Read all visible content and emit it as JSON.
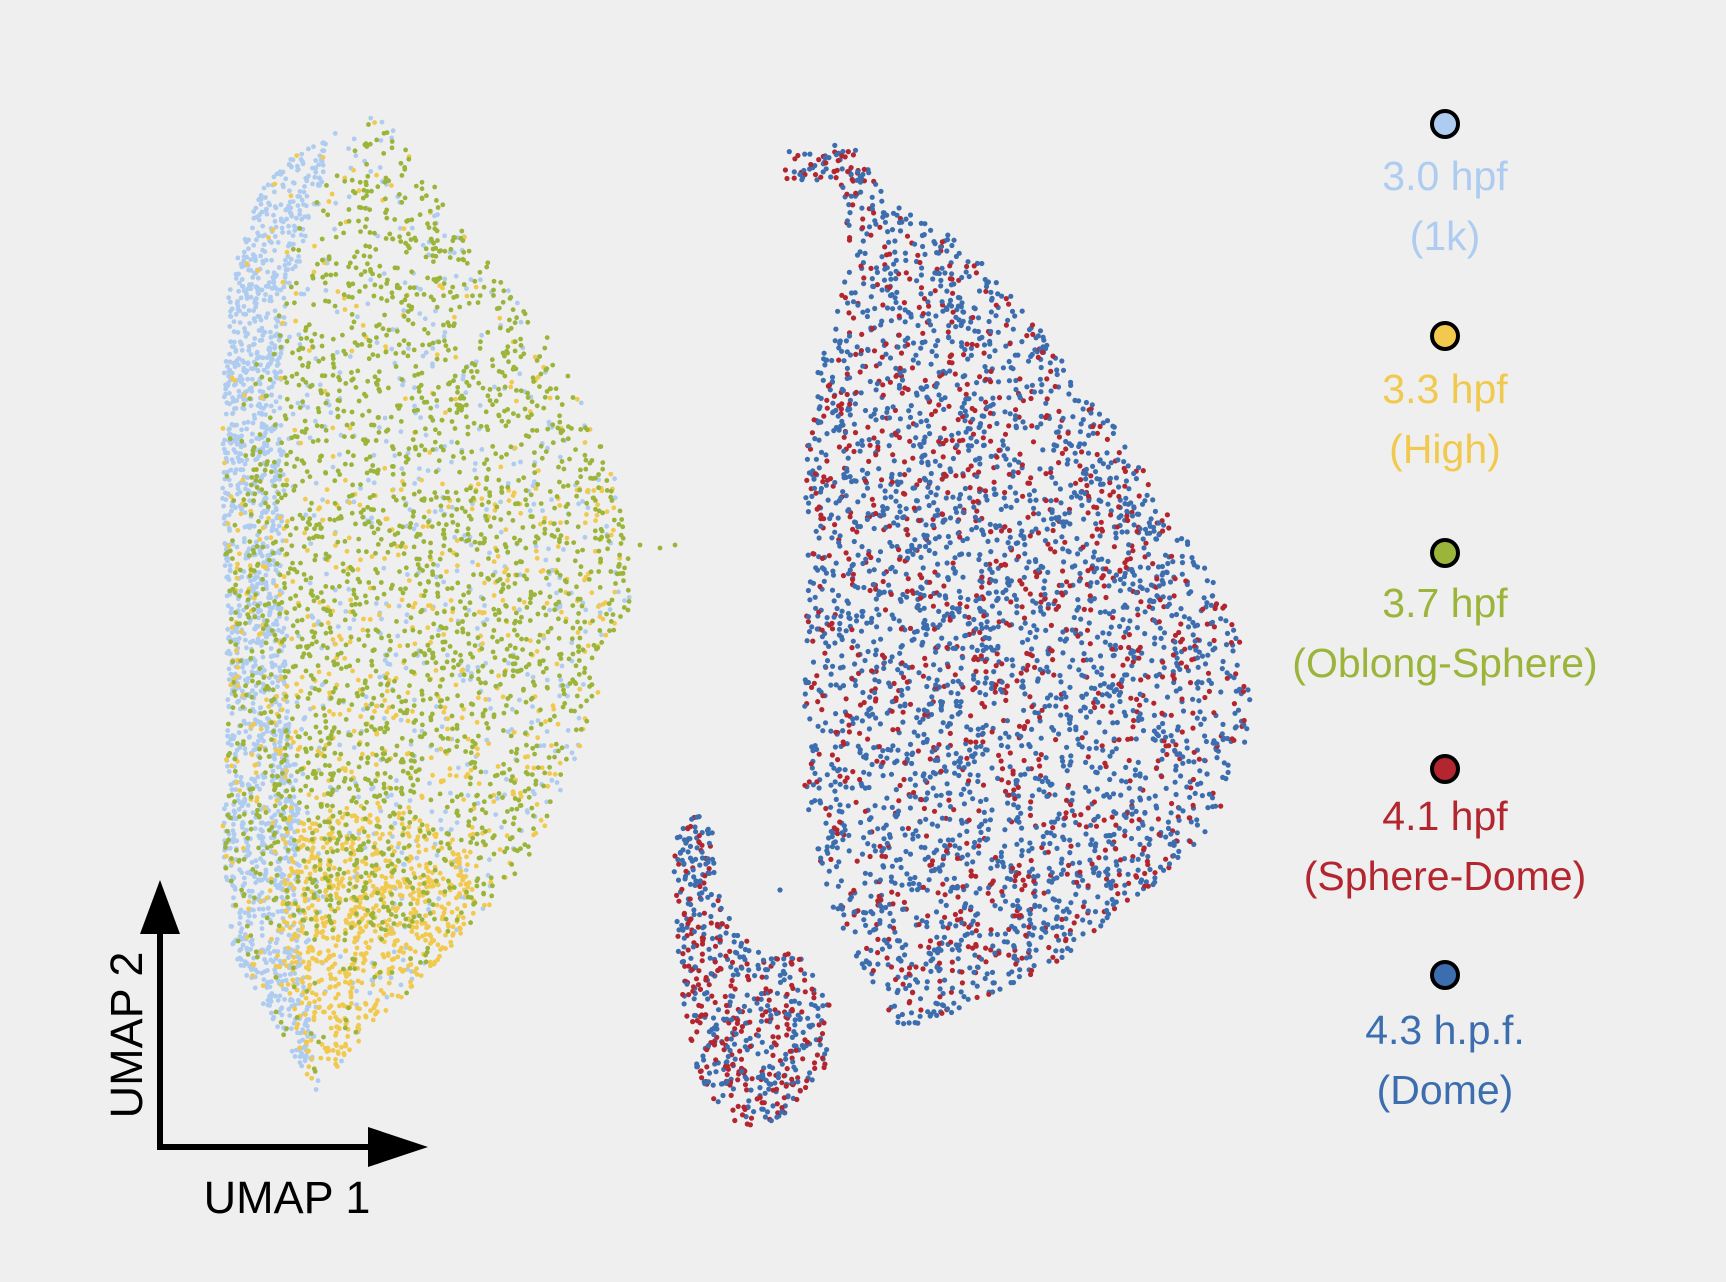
{
  "chart_data": {
    "type": "scatter",
    "title": "",
    "xlabel": "UMAP 1",
    "ylabel": "UMAP 2",
    "grid": false,
    "legend_position": "right",
    "series": [
      {
        "name": "3.0 hpf",
        "stage": "(1k)",
        "color": "#aecbf0",
        "panel": "left"
      },
      {
        "name": "3.3 hpf",
        "stage": "(High)",
        "color": "#f1c94e",
        "panel": "left"
      },
      {
        "name": "3.7 hpf",
        "stage": "(Oblong-Sphere)",
        "color": "#9bb43a",
        "panel": "left"
      },
      {
        "name": "4.1 hpf",
        "stage": "(Sphere-Dome)",
        "color": "#b3262f",
        "panel": "right"
      },
      {
        "name": "4.3 h.p.f.",
        "stage": "(Dome)",
        "color": "#3c6eaf",
        "panel": "right"
      }
    ]
  }
}
